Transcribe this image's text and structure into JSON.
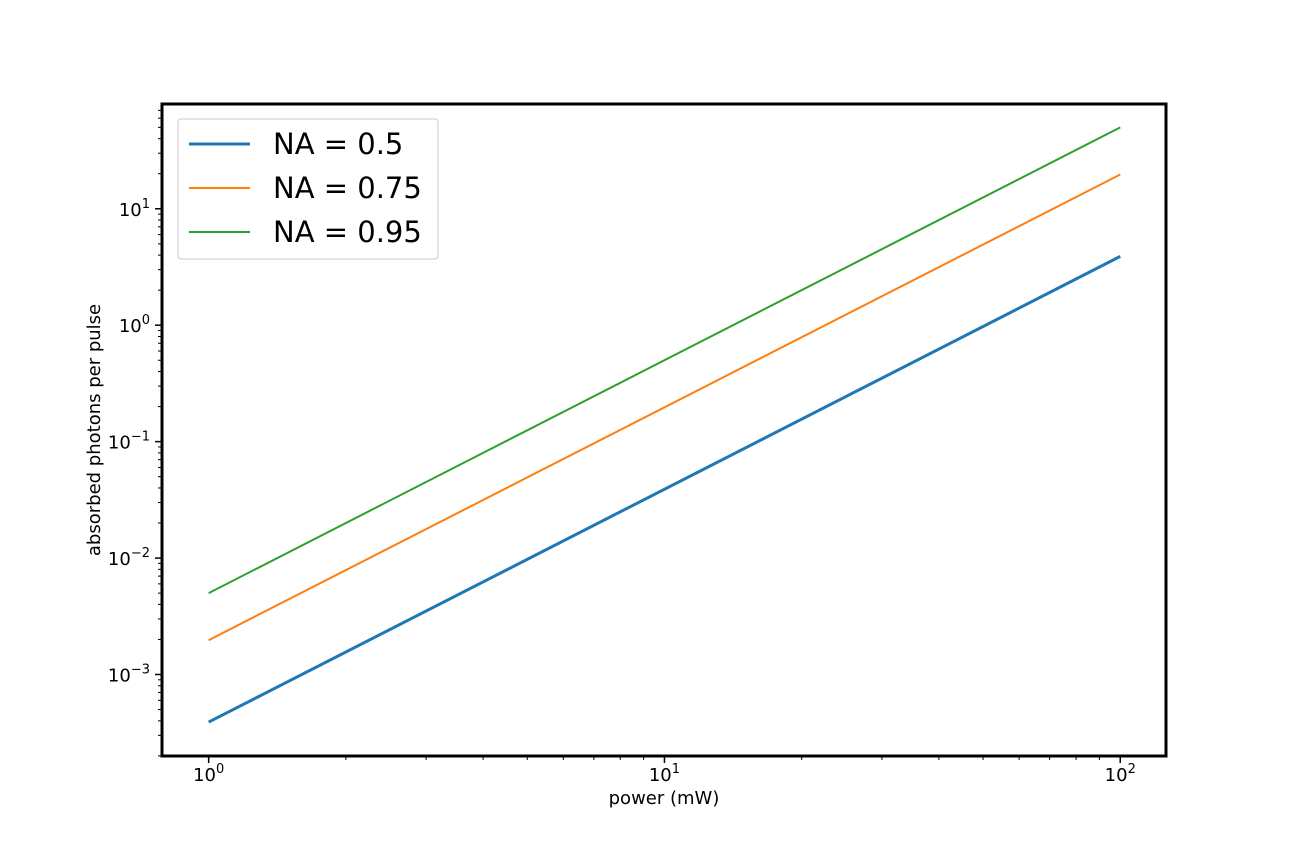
{
  "chart_data": {
    "type": "line",
    "xscale": "log",
    "yscale": "log",
    "xlabel": "power (mW)",
    "ylabel": "absorbed photons per pulse",
    "xlim": [
      0.79,
      126
    ],
    "ylim": [
      0.0001995,
      79.4
    ],
    "x_ticks": [
      {
        "value": 1,
        "base": "10",
        "exp": "0"
      },
      {
        "value": 10,
        "base": "10",
        "exp": "1"
      },
      {
        "value": 100,
        "base": "10",
        "exp": "2"
      }
    ],
    "y_ticks": [
      {
        "value": 0.001,
        "base": "10",
        "exp": "−3"
      },
      {
        "value": 0.01,
        "base": "10",
        "exp": "−2"
      },
      {
        "value": 0.1,
        "base": "10",
        "exp": "−1"
      },
      {
        "value": 1,
        "base": "10",
        "exp": "0"
      },
      {
        "value": 10,
        "base": "10",
        "exp": "1"
      }
    ],
    "grid": false,
    "legend_position": "top-left",
    "series": [
      {
        "name": "NA = 0.5",
        "color": "#1f77b4",
        "x": [
          1,
          100
        ],
        "y": [
          0.00039,
          3.9
        ]
      },
      {
        "name": "NA = 0.75",
        "color": "#ff7f0e",
        "x": [
          1,
          100
        ],
        "y": [
          0.00197,
          19.7
        ]
      },
      {
        "name": "NA = 0.95",
        "color": "#2ca02c",
        "x": [
          1,
          100
        ],
        "y": [
          0.005,
          50.0
        ]
      }
    ]
  }
}
